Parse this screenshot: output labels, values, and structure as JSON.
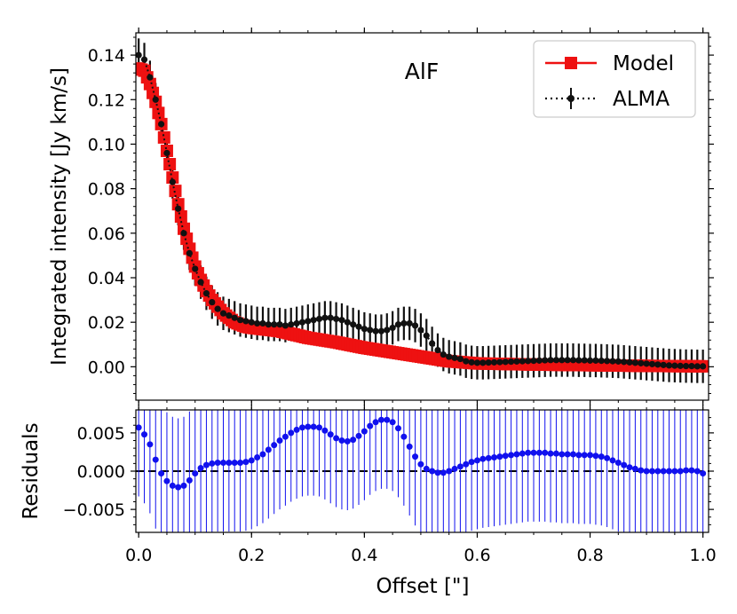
{
  "chart_data": [
    {
      "panel": "top",
      "type": "line",
      "annotation": "AlF",
      "xlabel": "",
      "ylabel": "Integrated intensity [Jy km/s]",
      "xlim": [
        -0.005,
        1.01
      ],
      "ylim": [
        -0.015,
        0.15
      ],
      "yticks": [
        0.0,
        0.02,
        0.04,
        0.06,
        0.08,
        0.1,
        0.12,
        0.14
      ],
      "ytick_labels": [
        "0.00",
        "0.02",
        "0.04",
        "0.06",
        "0.08",
        "0.10",
        "0.12",
        "0.14"
      ],
      "legend": {
        "placement": "top-right",
        "entries": [
          "Model",
          "ALMA"
        ]
      },
      "model_color": "#ee1111",
      "alma_color": "#111111",
      "model_x": [
        0.0,
        0.01,
        0.02,
        0.03,
        0.04,
        0.05,
        0.06,
        0.07,
        0.08,
        0.09,
        0.1,
        0.11,
        0.12,
        0.13,
        0.14,
        0.15,
        0.16,
        0.17,
        0.18,
        0.19,
        0.2,
        0.25,
        0.3,
        0.35,
        0.4,
        0.45,
        0.5,
        0.55,
        0.6,
        0.7,
        0.8,
        0.9,
        1.0
      ],
      "model_y": [
        0.134,
        0.133,
        0.127,
        0.119,
        0.109,
        0.097,
        0.085,
        0.073,
        0.062,
        0.053,
        0.045,
        0.039,
        0.034,
        0.03,
        0.027,
        0.024,
        0.022,
        0.02,
        0.019,
        0.018,
        0.0175,
        0.016,
        0.013,
        0.011,
        0.0085,
        0.0065,
        0.0045,
        0.0025,
        0.0015,
        0.001,
        0.0007,
        0.0004,
        0.0002
      ],
      "alma_x": [
        0.0,
        0.01,
        0.02,
        0.03,
        0.04,
        0.05,
        0.06,
        0.07,
        0.08,
        0.09,
        0.1,
        0.11,
        0.12,
        0.13,
        0.14,
        0.15,
        0.16,
        0.17,
        0.18,
        0.19,
        0.2,
        0.21,
        0.22,
        0.23,
        0.24,
        0.25,
        0.26,
        0.27,
        0.28,
        0.29,
        0.3,
        0.31,
        0.32,
        0.33,
        0.34,
        0.35,
        0.36,
        0.37,
        0.38,
        0.39,
        0.4,
        0.41,
        0.42,
        0.43,
        0.44,
        0.45,
        0.46,
        0.47,
        0.48,
        0.49,
        0.5,
        0.51,
        0.52,
        0.53,
        0.54,
        0.55,
        0.56,
        0.57,
        0.58,
        0.59,
        0.6,
        0.61,
        0.62,
        0.63,
        0.64,
        0.65,
        0.66,
        0.67,
        0.68,
        0.69,
        0.7,
        0.71,
        0.72,
        0.73,
        0.74,
        0.75,
        0.76,
        0.77,
        0.78,
        0.79,
        0.8,
        0.81,
        0.82,
        0.83,
        0.84,
        0.85,
        0.86,
        0.87,
        0.88,
        0.89,
        0.9,
        0.91,
        0.92,
        0.93,
        0.94,
        0.95,
        0.96,
        0.97,
        0.98,
        0.99,
        1.0
      ],
      "alma_y": [
        0.14,
        0.138,
        0.13,
        0.12,
        0.109,
        0.096,
        0.083,
        0.071,
        0.06,
        0.051,
        0.044,
        0.038,
        0.033,
        0.029,
        0.026,
        0.024,
        0.023,
        0.022,
        0.021,
        0.0205,
        0.02,
        0.0195,
        0.0195,
        0.019,
        0.019,
        0.019,
        0.0185,
        0.019,
        0.0195,
        0.02,
        0.0205,
        0.021,
        0.0215,
        0.022,
        0.022,
        0.0215,
        0.021,
        0.02,
        0.019,
        0.018,
        0.017,
        0.0165,
        0.016,
        0.016,
        0.0165,
        0.0175,
        0.019,
        0.0195,
        0.0195,
        0.0185,
        0.0165,
        0.014,
        0.0105,
        0.0075,
        0.0055,
        0.0045,
        0.004,
        0.0035,
        0.0025,
        0.002,
        0.0018,
        0.0018,
        0.0019,
        0.002,
        0.0021,
        0.0022,
        0.0023,
        0.0024,
        0.0025,
        0.0026,
        0.0027,
        0.0028,
        0.0029,
        0.003,
        0.003,
        0.003,
        0.003,
        0.003,
        0.0029,
        0.0029,
        0.0028,
        0.0028,
        0.0027,
        0.0026,
        0.0025,
        0.0024,
        0.0022,
        0.002,
        0.0018,
        0.0016,
        0.0014,
        0.0012,
        0.001,
        0.0008,
        0.0006,
        0.0005,
        0.0004,
        0.0003,
        0.0003,
        0.0002,
        0.0002
      ],
      "alma_err": 0.0075
    },
    {
      "panel": "bottom",
      "type": "scatter",
      "xlabel": "Offset [\"]",
      "ylabel": "Residuals",
      "xlim": [
        -0.005,
        1.01
      ],
      "ylim": [
        -0.008,
        0.008
      ],
      "xticks": [
        0.0,
        0.2,
        0.4,
        0.6,
        0.8,
        1.0
      ],
      "xtick_labels": [
        "0.0",
        "0.2",
        "0.4",
        "0.6",
        "0.8",
        "1.0"
      ],
      "yticks": [
        -0.005,
        0.0,
        0.005
      ],
      "ytick_labels": [
        "−0.005",
        "0.000",
        "0.005"
      ],
      "reference_line": 0.0,
      "point_color": "#1111ee",
      "x": [
        0.0,
        0.01,
        0.02,
        0.03,
        0.04,
        0.05,
        0.06,
        0.07,
        0.08,
        0.09,
        0.1,
        0.11,
        0.12,
        0.13,
        0.14,
        0.15,
        0.16,
        0.17,
        0.18,
        0.19,
        0.2,
        0.21,
        0.22,
        0.23,
        0.24,
        0.25,
        0.26,
        0.27,
        0.28,
        0.29,
        0.3,
        0.31,
        0.32,
        0.33,
        0.34,
        0.35,
        0.36,
        0.37,
        0.38,
        0.39,
        0.4,
        0.41,
        0.42,
        0.43,
        0.44,
        0.45,
        0.46,
        0.47,
        0.48,
        0.49,
        0.5,
        0.51,
        0.52,
        0.53,
        0.54,
        0.55,
        0.56,
        0.57,
        0.58,
        0.59,
        0.6,
        0.61,
        0.62,
        0.63,
        0.64,
        0.65,
        0.66,
        0.67,
        0.68,
        0.69,
        0.7,
        0.71,
        0.72,
        0.73,
        0.74,
        0.75,
        0.76,
        0.77,
        0.78,
        0.79,
        0.8,
        0.81,
        0.82,
        0.83,
        0.84,
        0.85,
        0.86,
        0.87,
        0.88,
        0.89,
        0.9,
        0.91,
        0.92,
        0.93,
        0.94,
        0.95,
        0.96,
        0.97,
        0.98,
        0.99,
        1.0
      ],
      "y": [
        0.0057,
        0.0048,
        0.0035,
        0.0015,
        -0.0003,
        -0.0013,
        -0.0019,
        -0.0021,
        -0.0019,
        -0.0012,
        -0.0003,
        0.0004,
        0.0008,
        0.001,
        0.0011,
        0.0011,
        0.0011,
        0.0011,
        0.0011,
        0.0012,
        0.0014,
        0.0018,
        0.0022,
        0.0028,
        0.0034,
        0.004,
        0.0045,
        0.005,
        0.0054,
        0.0057,
        0.0058,
        0.0058,
        0.0057,
        0.0053,
        0.0048,
        0.0043,
        0.004,
        0.0039,
        0.0041,
        0.0046,
        0.0052,
        0.0059,
        0.0064,
        0.0067,
        0.0067,
        0.0064,
        0.0056,
        0.0045,
        0.0032,
        0.0019,
        0.0009,
        0.0003,
        0.0,
        -0.0002,
        -0.0002,
        0.0,
        0.0003,
        0.0006,
        0.0009,
        0.0012,
        0.0014,
        0.0016,
        0.0017,
        0.0018,
        0.0019,
        0.002,
        0.0021,
        0.0022,
        0.0023,
        0.0024,
        0.0024,
        0.0024,
        0.0024,
        0.0023,
        0.0023,
        0.0022,
        0.0022,
        0.0022,
        0.0021,
        0.0021,
        0.0021,
        0.002,
        0.0019,
        0.0017,
        0.0014,
        0.0011,
        0.0008,
        0.0005,
        0.0003,
        0.0001,
        0.0,
        0.0,
        0.0,
        0.0,
        0.0,
        0.0,
        0.0,
        0.0001,
        0.0001,
        0.0,
        -0.0003
      ],
      "err": 0.009
    }
  ]
}
